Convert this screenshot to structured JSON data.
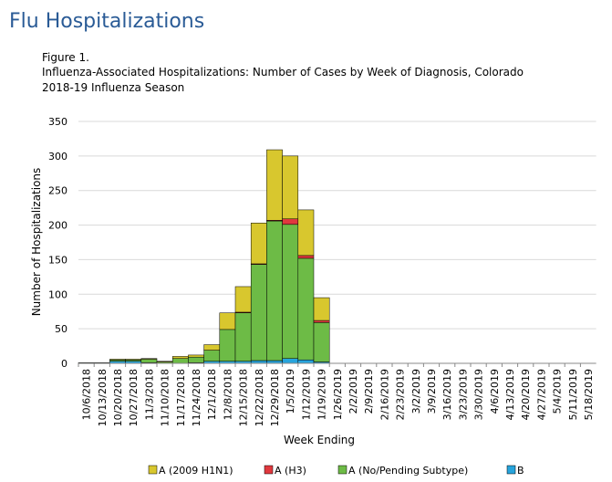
{
  "header": {
    "title": "Flu Hospitalizations"
  },
  "chart_data": {
    "type": "stacked-bar",
    "title": [
      "Figure 1.",
      "Influenza-Associated Hospitalizations: Number of  Cases by Week of Diagnosis, Colorado",
      "2018-19  Influenza Season"
    ],
    "y_label": "Number of Hospitalizations",
    "x_label": "Week Ending",
    "categories": [
      "10/6/2018",
      "10/13/2018",
      "10/20/2018",
      "10/27/2018",
      "11/3/2018",
      "11/10/2018",
      "11/17/2018",
      "11/24/2018",
      "12/1/2018",
      "12/8/2018",
      "12/15/2018",
      "12/22/2018",
      "12/29/2018",
      "1/5/2019",
      "1/12/2019",
      "1/19/2019",
      "1/26/2019",
      "2/2/2019",
      "2/9/2019",
      "2/16/2019",
      "2/23/2019",
      "3/2/2019",
      "3/9/2019",
      "3/16/2019",
      "3/23/2019",
      "3/30/2019",
      "4/6/2019",
      "4/13/2019",
      "4/20/2019",
      "4/27/2019",
      "5/4/2019",
      "5/11/2019",
      "5/18/2019"
    ],
    "series": [
      {
        "name": "A (2009 H1N1)",
        "color": "#d8c72e",
        "values": [
          0,
          0,
          1,
          1,
          1,
          1,
          3,
          3,
          8,
          24,
          37,
          59,
          102,
          91,
          66,
          33,
          null,
          null,
          null,
          null,
          null,
          null,
          null,
          null,
          null,
          null,
          null,
          null,
          null,
          null,
          null,
          null,
          null
        ]
      },
      {
        "name": "A (H3)",
        "color": "#e0383e",
        "values": [
          0,
          0,
          0,
          0,
          0,
          0,
          0,
          0,
          0,
          0,
          1,
          1,
          1,
          8,
          4,
          3,
          null,
          null,
          null,
          null,
          null,
          null,
          null,
          null,
          null,
          null,
          null,
          null,
          null,
          null,
          null,
          null,
          null
        ]
      },
      {
        "name": "A (No/Pending Subtype)",
        "color": "#6dbb46",
        "values": [
          1,
          1,
          2,
          2,
          5,
          2,
          7,
          8,
          16,
          46,
          70,
          139,
          202,
          194,
          147,
          57,
          null,
          null,
          null,
          null,
          null,
          null,
          null,
          null,
          null,
          null,
          null,
          null,
          null,
          null,
          null,
          null,
          null
        ]
      },
      {
        "name": "B",
        "color": "#27a4dc",
        "values": [
          0,
          0,
          3,
          3,
          1,
          0,
          0,
          1,
          3,
          3,
          3,
          4,
          4,
          7,
          5,
          2,
          null,
          null,
          null,
          null,
          null,
          null,
          null,
          null,
          null,
          null,
          null,
          null,
          null,
          null,
          null,
          null,
          null
        ]
      }
    ],
    "ylim": [
      0,
      350
    ],
    "yticks": [
      0,
      50,
      100,
      150,
      200,
      250,
      300,
      350
    ],
    "grid": true
  }
}
